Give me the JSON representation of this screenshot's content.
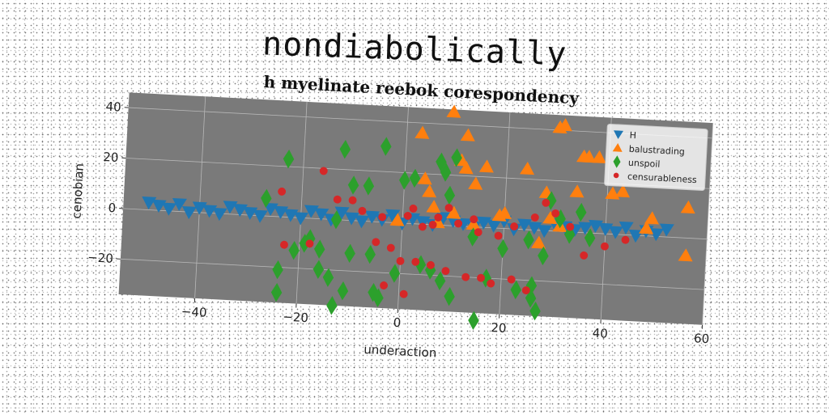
{
  "figure": {
    "title": "nondiabolically"
  },
  "chart_data": {
    "type": "scatter",
    "title": "h myelinate reebok corespondency",
    "xlabel": "underaction",
    "ylabel": "cenobian",
    "xlim": [
      -55,
      60
    ],
    "ylim": [
      -34,
      46
    ],
    "xticks": [
      -40,
      -20,
      0,
      20,
      40,
      60
    ],
    "yticks": [
      -20,
      0,
      20,
      40
    ],
    "xtick_labels": [
      "−40",
      "−20",
      "0",
      "20",
      "40",
      "60"
    ],
    "ytick_labels": [
      "−20",
      "0",
      "20",
      "40"
    ],
    "grid": true,
    "legend_position": "top-right",
    "plot_background": "#7a7a7a",
    "series": [
      {
        "name": "H",
        "marker": "triangle-down",
        "color": "#1f77b4",
        "x": [
          -50,
          -48,
          -46,
          -44,
          -42,
          -40,
          -38,
          -36,
          -34,
          -32,
          -30,
          -28,
          -26,
          -24,
          -22,
          -20,
          -18,
          -16,
          -14,
          -12,
          -10,
          -8,
          -6,
          -4,
          -2,
          0,
          2,
          4,
          6,
          8,
          10,
          12,
          14,
          16,
          18,
          20,
          22,
          24,
          26,
          28,
          30,
          32,
          34,
          36,
          38,
          40,
          42,
          44,
          46,
          48,
          50,
          52
        ],
        "y": [
          3,
          2,
          1,
          3,
          0,
          2,
          1,
          0,
          3,
          2,
          1,
          0,
          3,
          2,
          1,
          0,
          3,
          2,
          0,
          3,
          1,
          0,
          2,
          1,
          3,
          0,
          2,
          1,
          0,
          3,
          2,
          1,
          0,
          2,
          1,
          3,
          0,
          2,
          1,
          0,
          3,
          2,
          1,
          2,
          3,
          2,
          1,
          3,
          0,
          2,
          1,
          3
        ]
      },
      {
        "name": "balustrading",
        "marker": "triangle-up",
        "color": "#ff7f0e",
        "x": [
          9,
          3,
          12,
          31,
          30,
          38,
          35,
          36,
          11,
          16,
          24,
          12,
          4,
          14,
          5,
          28,
          34,
          43,
          41,
          6,
          10,
          20,
          29,
          49,
          56,
          7,
          14,
          19,
          31,
          48,
          56,
          27,
          -1
        ],
        "y": [
          45,
          36,
          36,
          42,
          41,
          30,
          30,
          30,
          26,
          24,
          24,
          23,
          18,
          17,
          13,
          15,
          16,
          17,
          16,
          7,
          5,
          6,
          5,
          7,
          12,
          1,
          1,
          5,
          2,
          3,
          -7,
          -5,
          1
        ]
      },
      {
        "name": "unspoil",
        "marker": "diamond",
        "color": "#2ca02c",
        "x": [
          -23,
          -12,
          -4,
          -10,
          -7,
          0,
          2,
          7,
          8,
          10,
          -27,
          -18,
          -16,
          -13,
          9,
          -19,
          -21,
          -14,
          -10,
          -6,
          -1,
          -24,
          -16,
          -4,
          4,
          6,
          8,
          31,
          33,
          35,
          25,
          29,
          20,
          14,
          10,
          17,
          23,
          26,
          28,
          37,
          -24,
          -13,
          -11,
          -5,
          15,
          26,
          27
        ],
        "y": [
          23,
          28,
          30,
          14,
          14,
          17,
          18,
          25,
          21,
          27,
          7,
          -8,
          -12,
          0,
          12,
          -10,
          -13,
          -23,
          -13,
          -13,
          -20,
          -21,
          -20,
          -30,
          -16,
          -18,
          -22,
          5,
          -1,
          8,
          -4,
          12,
          -8,
          -4,
          -28,
          -20,
          -24,
          -22,
          -10,
          -2,
          -30,
          -34,
          -28,
          -28,
          -37,
          -27,
          -32
        ]
      },
      {
        "name": "censurableness",
        "marker": "circle",
        "color": "#d62728",
        "x": [
          -16,
          -24,
          -13,
          -10,
          -8,
          -4,
          1,
          2,
          4,
          6,
          7,
          9,
          11,
          14,
          15,
          19,
          22,
          26,
          28,
          30,
          33,
          36,
          40,
          44,
          -18,
          -23,
          -5,
          -2,
          0,
          3,
          6,
          9,
          13,
          16,
          18,
          22,
          25,
          -3,
          1
        ],
        "y": [
          19,
          10,
          8,
          8,
          4,
          2,
          3,
          6,
          -1,
          0,
          3,
          7,
          1,
          3,
          -2,
          -3,
          1,
          5,
          11,
          7,
          2,
          -9,
          -5,
          -2,
          -10,
          -11,
          -8,
          -10,
          -15,
          -15,
          -16,
          -18,
          -20,
          -20,
          -22,
          -20,
          -24,
          -25,
          -28
        ]
      }
    ]
  }
}
